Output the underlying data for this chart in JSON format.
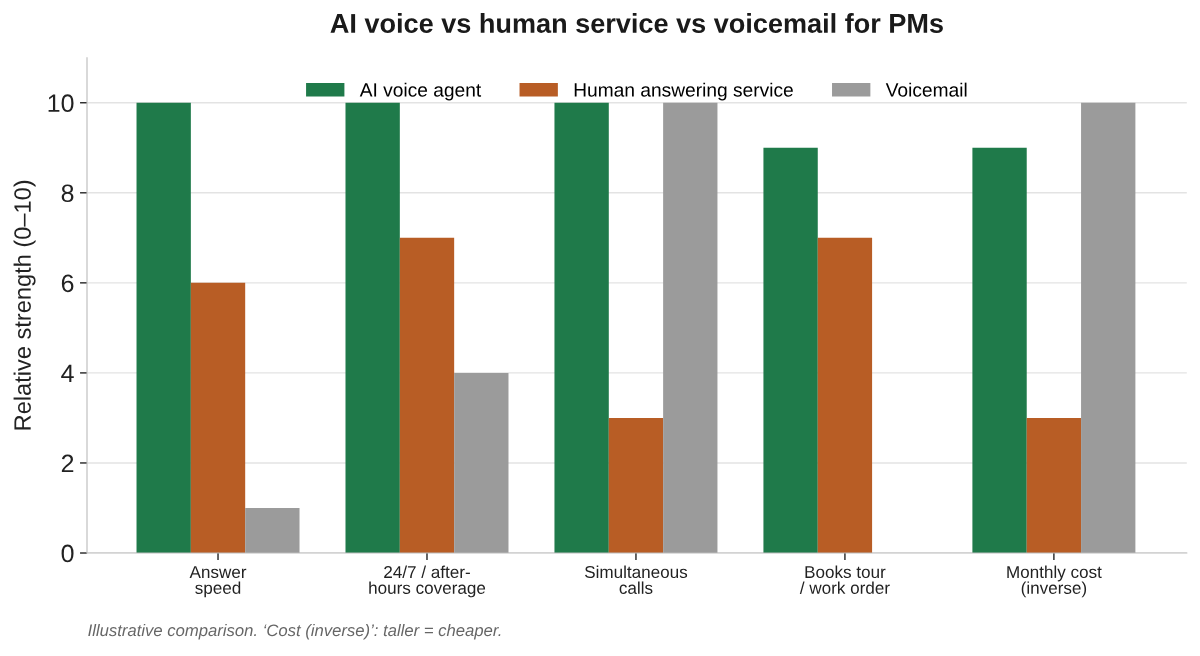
{
  "chart_data": {
    "type": "bar",
    "title": "AI voice vs human service vs voicemail for PMs",
    "ylabel": "Relative strength (0–10)",
    "categories": [
      "Answer\nspeed",
      "24/7 / after-\nhours coverage",
      "Simultaneous\ncalls",
      "Books tour\n/ work order",
      "Monthly cost\n(inverse)"
    ],
    "series": [
      {
        "name": "AI voice agent",
        "color": "#1f7a4a",
        "values": [
          10,
          10,
          10,
          9,
          9
        ]
      },
      {
        "name": "Human answering service",
        "color": "#b85d25",
        "values": [
          6,
          7,
          3,
          7,
          3
        ]
      },
      {
        "name": "Voicemail",
        "color": "#9b9b9b",
        "values": [
          1,
          4,
          10,
          0,
          10
        ]
      }
    ],
    "ylim": [
      0,
      11
    ],
    "yticks": [
      0,
      2,
      4,
      6,
      8,
      10
    ],
    "grid": "y",
    "legend": "top",
    "annotations": [
      "Illustrative comparison. ‘Cost (inverse)’: taller = cheaper."
    ]
  }
}
